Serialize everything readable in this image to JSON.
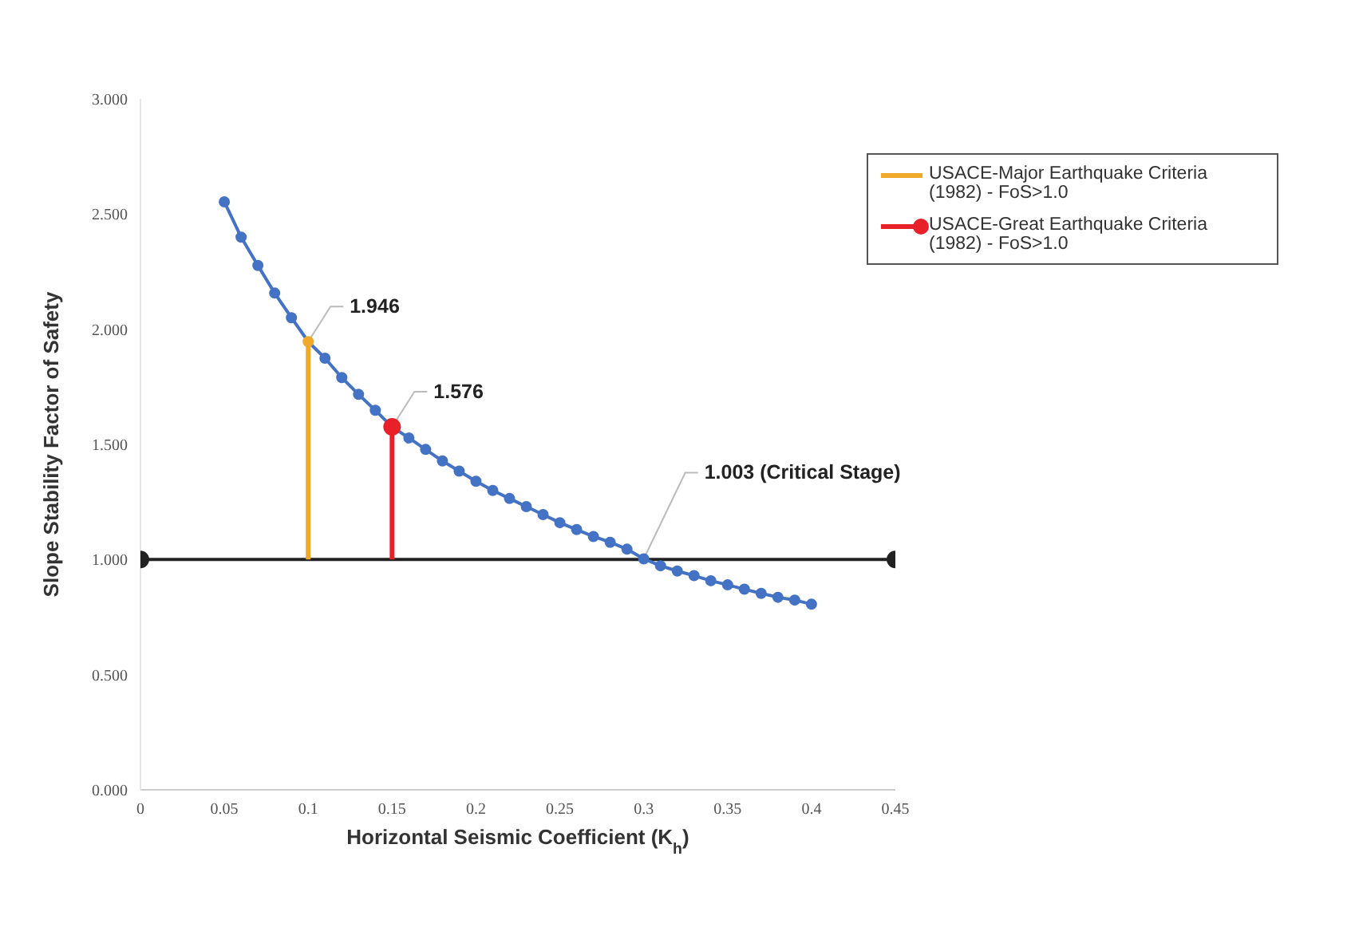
{
  "chart_data": {
    "type": "line",
    "xlabel": "Horizontal Seismic Coefficient (K$_{h}$)",
    "ylabel": "Slope Stability  Factor of Safety",
    "xlim": [
      0,
      0.45
    ],
    "xticks": [
      0,
      0.05,
      {
        "value": 0.1,
        "label": "0.1"
      },
      0.15,
      {
        "value": 0.2,
        "label": "0.2"
      },
      0.25,
      {
        "value": 0.3,
        "label": "0.3"
      },
      0.35,
      {
        "value": 0.4,
        "label": "0.4"
      },
      0.45
    ],
    "ylim": [
      0,
      3
    ],
    "yticks": [
      {
        "value": 0,
        "label": "0.000"
      },
      {
        "value": 0.5,
        "label": "0.500"
      },
      {
        "value": 1,
        "label": "1.000"
      },
      {
        "value": 1.5,
        "label": "1.500"
      },
      {
        "value": 2,
        "label": "2.000"
      },
      {
        "value": 2.5,
        "label": "2.500"
      },
      {
        "value": 3,
        "label": "3.000"
      }
    ],
    "legend": "top right",
    "grid": false,
    "series": [
      {
        "color": "#222222",
        "marker": "circle",
        "x": [
          0,
          0.45
        ],
        "values": [
          1.0,
          1.0
        ]
      },
      {
        "color": "#4472c4",
        "marker": "circle",
        "x": [
          0.05,
          0.06,
          0.07,
          0.08,
          0.09,
          0.1,
          0.11,
          0.12,
          0.13,
          0.14,
          0.15,
          0.16,
          0.17,
          0.18,
          0.19,
          0.2,
          0.21,
          0.22,
          0.23,
          0.24,
          0.25,
          0.26,
          0.27,
          0.28,
          0.29,
          0.3,
          0.31,
          0.32,
          0.33,
          0.34,
          0.35,
          0.36,
          0.37,
          0.38,
          0.39,
          0.4
        ],
        "values": [
          2.553,
          2.4,
          2.277,
          2.157,
          2.05,
          1.946,
          1.874,
          1.79,
          1.717,
          1.648,
          1.576,
          1.528,
          1.478,
          1.428,
          1.384,
          1.34,
          1.3,
          1.265,
          1.23,
          1.195,
          1.16,
          1.13,
          1.1,
          1.075,
          1.045,
          1.003,
          0.973,
          0.95,
          0.93,
          0.908,
          0.89,
          0.871,
          0.853,
          0.836,
          0.824,
          0.806
        ],
        "colors": [
          "#4472c4",
          "#4472c4",
          "#4472c4",
          "#4472c4",
          "#4472c4",
          "#f0a92a",
          "#4472c4",
          "#4472c4",
          "#4472c4",
          "#4472c4",
          "#e8202a",
          "#4472c4",
          "#4472c4",
          "#4472c4",
          "#4472c4",
          "#4472c4",
          "#4472c4",
          "#4472c4",
          "#4472c4",
          "#4472c4",
          "#4472c4",
          "#4472c4",
          "#4472c4",
          "#4472c4",
          "#4472c4",
          "#4472c4",
          "#4472c4",
          "#4472c4",
          "#4472c4",
          "#4472c4",
          "#4472c4",
          "#4472c4",
          "#4472c4",
          "#4472c4",
          "#4472c4",
          "#4472c4"
        ]
      },
      {
        "name": "USACE-Major Earthquake Criteria (1982) - FoS>1.0",
        "color": "#f0a92a",
        "marker": "none",
        "x": [
          0.1,
          0.1
        ],
        "values": [
          1.0,
          1.946
        ]
      },
      {
        "name": "USACE-Great Earthquake Criteria (1982) - FoS>1.0",
        "color": "#e8202a",
        "marker": "circle",
        "x": [
          0.15,
          0.15
        ],
        "values": [
          1.0,
          1.576
        ]
      }
    ],
    "annotations": [
      {
        "text": "1.946",
        "x": 0.1,
        "y": 1.946
      },
      {
        "text": "1.576",
        "x": 0.15,
        "y": 1.576
      },
      {
        "text": "1.003 (Critical Stage)",
        "x": 0.3,
        "y": 1.003
      }
    ]
  }
}
